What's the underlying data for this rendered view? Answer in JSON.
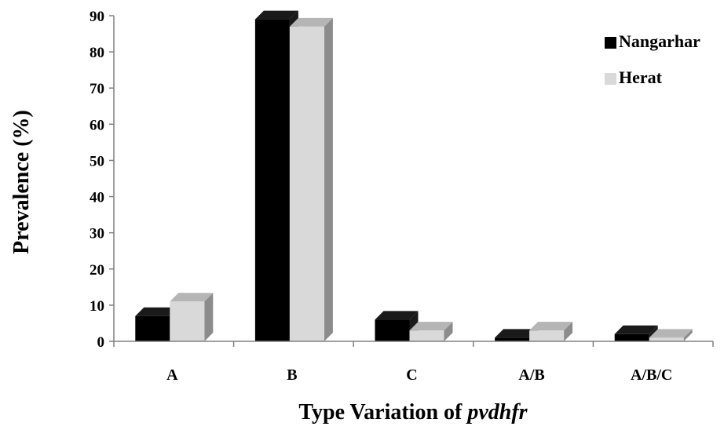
{
  "chart_data": {
    "type": "bar",
    "categories": [
      "A",
      "B",
      "C",
      "A/B",
      "A/B/C"
    ],
    "series": [
      {
        "name": "Nangarhar",
        "values": [
          7,
          89,
          6,
          1,
          2
        ],
        "color": "#000000",
        "side": "#1a1a1a",
        "top": "#1a1a1a"
      },
      {
        "name": "Herat",
        "values": [
          11,
          87,
          3,
          3,
          1
        ],
        "color": "#d9d9d9",
        "side": "#8c8c8c",
        "top": "#b5b5b5"
      }
    ],
    "yticks": [
      0,
      10,
      20,
      30,
      40,
      50,
      60,
      70,
      80,
      90
    ],
    "ylim": [
      0,
      90
    ],
    "ylabel": "Prevalence (%)",
    "xlabel": "Type Variation of",
    "xlabel_italic": "pvdhfr",
    "legend_position": "top-right",
    "grid": false,
    "style": "3d"
  }
}
